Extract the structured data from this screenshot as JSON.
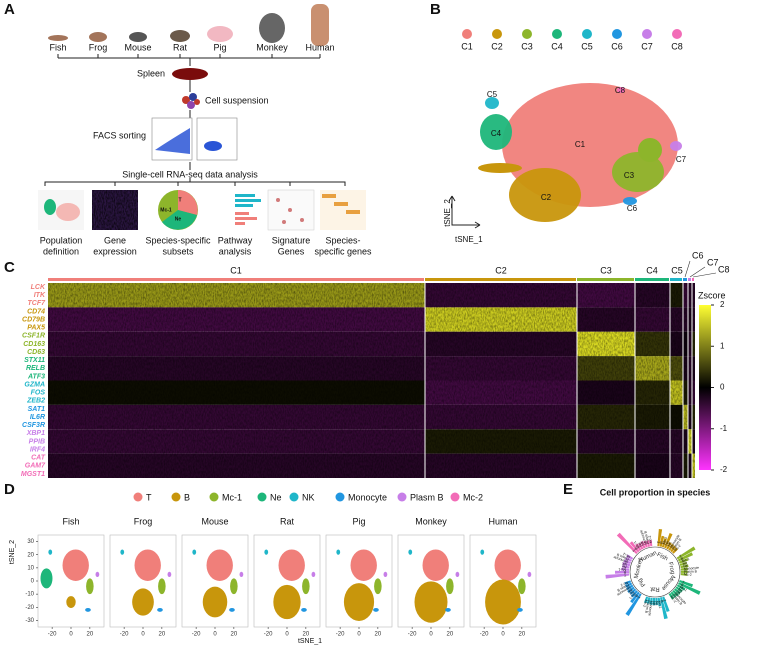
{
  "panels": [
    "A",
    "B",
    "C",
    "D",
    "E"
  ],
  "panel_a": {
    "species": [
      "Fish",
      "Frog",
      "Mouse",
      "Rat",
      "Pig",
      "Monkey",
      "Human"
    ],
    "steps": [
      "Spleen",
      "Cell suspension",
      "FACS sorting",
      "Single-cell RNA-seq data analysis"
    ],
    "pie_labels": [
      "T",
      "Ne",
      "Mc-1"
    ],
    "analyses": [
      [
        "Population",
        "definition"
      ],
      [
        "Gene",
        "expression"
      ],
      [
        "Species-specific",
        "subsets"
      ],
      [
        "Pathway",
        "analysis"
      ],
      [
        "Signature",
        "Genes"
      ],
      [
        "Species-",
        "specific genes"
      ]
    ]
  },
  "panel_b": {
    "clusters": [
      "C1",
      "C2",
      "C3",
      "C4",
      "C5",
      "C6",
      "C7",
      "C8"
    ],
    "colors": [
      "#f07f7a",
      "#c8960c",
      "#8db52b",
      "#1db67a",
      "#1fb6c9",
      "#2196e0",
      "#c77ee8",
      "#f26cb7"
    ],
    "xlabel": "tSNE_1",
    "ylabel": "tSNE_2"
  },
  "panel_c": {
    "clusters": [
      "C1",
      "C2",
      "C3",
      "C4",
      "C5",
      "C6",
      "C7",
      "C8"
    ],
    "genes": [
      "LCK",
      "ITK",
      "TCF7",
      "CD74",
      "CD79B",
      "PAX5",
      "CSF1R",
      "CD163",
      "CD63",
      "STX11",
      "RELB",
      "ATF3",
      "GZMA",
      "FOS",
      "ZEB2",
      "SAT1",
      "IL6R",
      "CSF3R",
      "XBP1",
      "PPIB",
      "IRF4",
      "CAT",
      "GAM7",
      "MGST1"
    ],
    "colorbar_title": "Zscore",
    "colorbar_ticks": [
      2,
      1,
      0,
      -1,
      -2
    ],
    "block_zscore": [
      [
        1.2,
        -0.4,
        -0.5,
        -0.3,
        0.2,
        -0.4,
        -0.3,
        -0.3
      ],
      [
        -0.5,
        1.6,
        -0.3,
        -0.4,
        -0.3,
        -0.3,
        -0.2,
        -0.3
      ],
      [
        -0.4,
        -0.3,
        1.7,
        0.4,
        -0.2,
        -0.1,
        -0.3,
        0.3
      ],
      [
        -0.3,
        -0.4,
        0.5,
        1.3,
        0.6,
        -0.2,
        -0.3,
        -0.2
      ],
      [
        0.1,
        -0.5,
        -0.2,
        0.3,
        1.5,
        0.2,
        -0.3,
        -0.4
      ],
      [
        -0.4,
        -0.4,
        0.3,
        0.2,
        0.1,
        1.4,
        -0.2,
        0.3
      ],
      [
        -0.4,
        0.2,
        -0.3,
        -0.3,
        -0.3,
        -0.2,
        1.6,
        -0.2
      ],
      [
        -0.3,
        -0.3,
        0.2,
        -0.2,
        -0.3,
        0.2,
        -0.2,
        1.5
      ]
    ]
  },
  "panel_d": {
    "cell_types": [
      "T",
      "B",
      "Mc-1",
      "Ne",
      "NK",
      "Monocyte",
      "Plasm B",
      "Mc-2"
    ],
    "colors": [
      "#f07f7a",
      "#c8960c",
      "#8db52b",
      "#1db67a",
      "#1fb6c9",
      "#2196e0",
      "#c77ee8",
      "#f26cb7"
    ],
    "species": [
      "Fish",
      "Frog",
      "Mouse",
      "Rat",
      "Pig",
      "Monkey",
      "Human"
    ],
    "xlim": [
      -35,
      35
    ],
    "ylim": [
      -35,
      35
    ],
    "xticks": [
      -20,
      0,
      20
    ],
    "yticks": [
      30,
      20,
      10,
      0,
      -10,
      -20,
      -30
    ],
    "xlabel": "tSNE_1",
    "ylabel": "tSNE_2"
  },
  "panel_e": {
    "title": "Cell proportion in species",
    "species": [
      "Fish",
      "Frog",
      "Mouse",
      "Rat",
      "Pig",
      "Monkey",
      "Human"
    ],
    "colors": [
      "#c8960c",
      "#8db52b",
      "#1db67a",
      "#1fb6c9",
      "#2196e0",
      "#c77ee8",
      "#f26cb7"
    ],
    "cell_types": [
      "T",
      "B",
      "Mc-1",
      "Ne",
      "NK",
      "Monocyte",
      "Plasm B",
      "Mc-2"
    ],
    "ylim": [
      0,
      100
    ],
    "proportions": [
      [
        35,
        15,
        10,
        30,
        4,
        3,
        2,
        1
      ],
      [
        45,
        30,
        10,
        3,
        6,
        3,
        2,
        1
      ],
      [
        25,
        55,
        8,
        4,
        3,
        3,
        1,
        1
      ],
      [
        30,
        50,
        8,
        3,
        4,
        3,
        1,
        1
      ],
      [
        60,
        20,
        6,
        3,
        5,
        3,
        2,
        1
      ],
      [
        55,
        25,
        6,
        4,
        5,
        3,
        1,
        1
      ],
      [
        65,
        20,
        5,
        2,
        4,
        2,
        1,
        1
      ]
    ]
  }
}
